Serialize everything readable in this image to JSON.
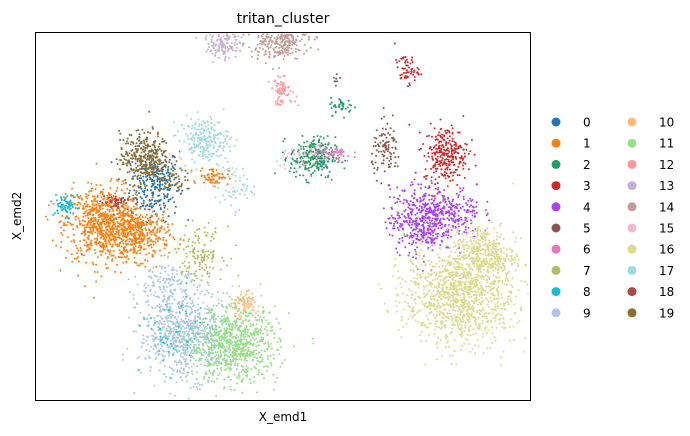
{
  "chart_data": {
    "type": "scatter",
    "title": "tritan_cluster",
    "xlabel": "X_emd1",
    "ylabel": "X_emd2",
    "grid": false,
    "ticks": false,
    "legend_position": "right",
    "xlim": [
      0,
      100
    ],
    "ylim": [
      0,
      100
    ],
    "series": [
      {
        "name": "0",
        "color": "#1f77b4",
        "blobs": [
          [
            24,
            59,
            2.5,
            5,
            260
          ]
        ]
      },
      {
        "name": "1",
        "color": "#ff7f0e",
        "blobs": [
          [
            14,
            48,
            4,
            5,
            800
          ],
          [
            21,
            45,
            3,
            3.5,
            350
          ],
          [
            36,
            61,
            1.5,
            1.2,
            70
          ]
        ]
      },
      {
        "name": "2",
        "color": "#279e68",
        "blobs": [
          [
            56,
            66,
            2.3,
            2.8,
            260
          ],
          [
            62,
            80,
            1.2,
            1.2,
            40
          ]
        ]
      },
      {
        "name": "3",
        "color": "#d62728",
        "blobs": [
          [
            83,
            67,
            2.2,
            3.8,
            280
          ],
          [
            75,
            90,
            1.2,
            2,
            60
          ]
        ]
      },
      {
        "name": "4",
        "color": "#aa40fc",
        "blobs": [
          [
            78,
            49,
            3.2,
            4.5,
            450
          ],
          [
            84,
            51,
            3,
            3.5,
            200
          ]
        ]
      },
      {
        "name": "5",
        "color": "#8c564b",
        "blobs": [
          [
            71,
            68,
            1.5,
            3.5,
            100
          ],
          [
            61,
            87,
            0.4,
            1,
            8
          ]
        ]
      },
      {
        "name": "6",
        "color": "#e377c2",
        "blobs": [
          [
            60,
            67,
            2,
            1.2,
            60
          ]
        ]
      },
      {
        "name": "7",
        "color": "#b5bd61",
        "blobs": [
          [
            33,
            40,
            2.5,
            3.5,
            140
          ]
        ]
      },
      {
        "name": "8",
        "color": "#17becf",
        "blobs": [
          [
            6,
            53,
            1.2,
            1.5,
            70
          ],
          [
            28,
            18,
            3,
            5,
            80
          ]
        ]
      },
      {
        "name": "9",
        "color": "#aec7e8",
        "blobs": [
          [
            30,
            18,
            4.5,
            6,
            700
          ],
          [
            26,
            32,
            3,
            3,
            120
          ]
        ]
      },
      {
        "name": "10",
        "color": "#ffbb78",
        "blobs": [
          [
            42,
            26,
            1.5,
            1.8,
            90
          ]
        ]
      },
      {
        "name": "11",
        "color": "#98df8a",
        "blobs": [
          [
            40,
            15,
            4.5,
            5,
            800
          ]
        ]
      },
      {
        "name": "12",
        "color": "#ff9896",
        "blobs": [
          [
            50,
            84,
            1.3,
            1.8,
            70
          ]
        ]
      },
      {
        "name": "13",
        "color": "#c5b0d5",
        "blobs": [
          [
            38,
            98,
            1.8,
            2.5,
            160
          ]
        ]
      },
      {
        "name": "14",
        "color": "#c49c94",
        "blobs": [
          [
            49,
            99,
            3,
            3,
            380
          ]
        ]
      },
      {
        "name": "15",
        "color": "#f7b6d2",
        "blobs": [
          [
            54,
            66,
            2.5,
            2,
            50
          ]
        ]
      },
      {
        "name": "16",
        "color": "#dbdb8d",
        "blobs": [
          [
            86,
            29,
            5.5,
            7,
            1200
          ],
          [
            91,
            40,
            3,
            4,
            300
          ]
        ]
      },
      {
        "name": "17",
        "color": "#9edae5",
        "blobs": [
          [
            34,
            71,
            2.5,
            3,
            220
          ],
          [
            40,
            58,
            2,
            3,
            60
          ]
        ]
      },
      {
        "name": "18",
        "color": "#ad494a",
        "blobs": [
          [
            16,
            54,
            1.5,
            1.2,
            50
          ]
        ]
      },
      {
        "name": "19",
        "color": "#8c6d31",
        "blobs": [
          [
            22,
            66,
            2.5,
            3.5,
            330
          ],
          [
            27,
            60,
            1.5,
            2,
            60
          ]
        ]
      }
    ]
  }
}
